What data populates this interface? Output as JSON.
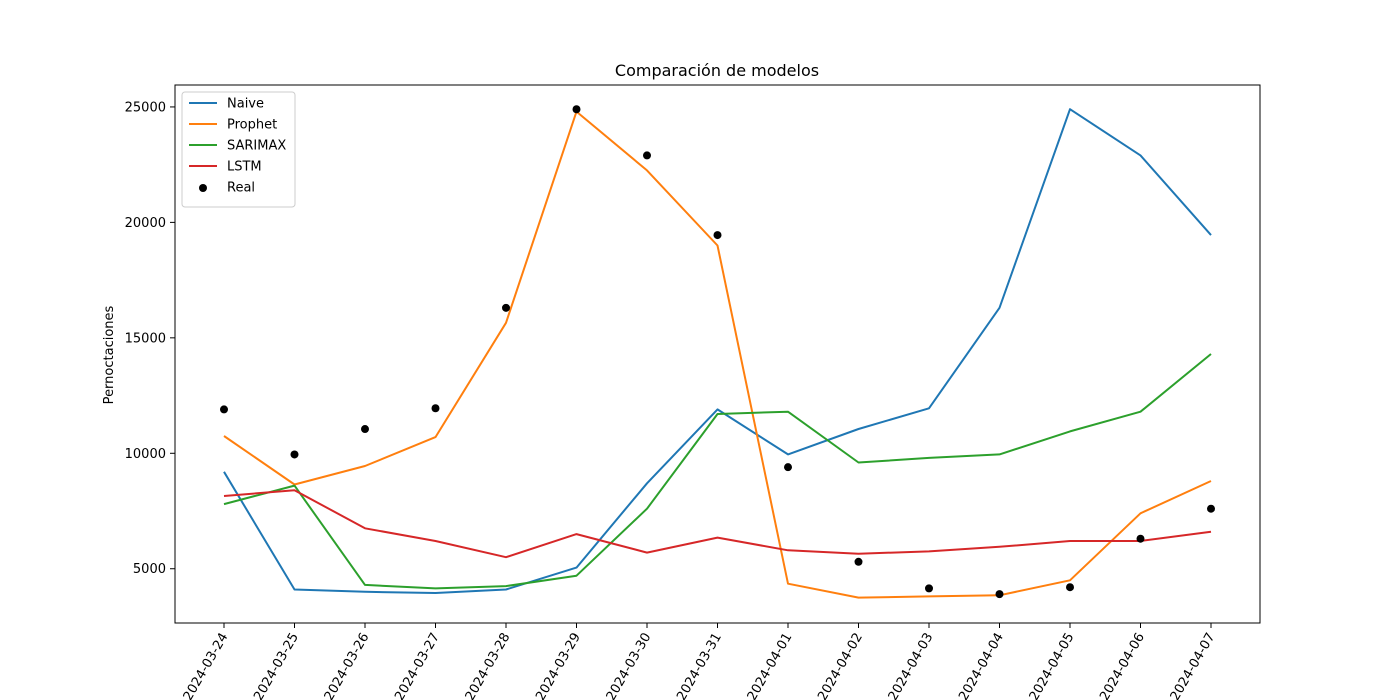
{
  "chart_data": {
    "type": "line",
    "title": "Comparación de modelos",
    "xlabel": "",
    "ylabel": "Pernoctaciones",
    "categories": [
      "2024-03-24",
      "2024-03-25",
      "2024-03-26",
      "2024-03-27",
      "2024-03-28",
      "2024-03-29",
      "2024-03-30",
      "2024-03-31",
      "2024-04-01",
      "2024-04-02",
      "2024-04-03",
      "2024-04-04",
      "2024-04-05",
      "2024-04-06",
      "2024-04-07"
    ],
    "yticks": [
      5000,
      10000,
      15000,
      20000,
      25000
    ],
    "ylim": [
      2650,
      25950
    ],
    "legend_position": "top-left",
    "series": [
      {
        "name": "Naive",
        "kind": "line",
        "color": "#1f77b4",
        "values": [
          9200,
          4100,
          4000,
          3950,
          4100,
          5050,
          8700,
          11900,
          9950,
          11050,
          11950,
          16300,
          24900,
          22900,
          19450
        ]
      },
      {
        "name": "Prophet",
        "kind": "line",
        "color": "#ff7f0e",
        "values": [
          10750,
          8650,
          9450,
          10700,
          15650,
          24800,
          22250,
          19000,
          4350,
          3750,
          3800,
          3850,
          4500,
          7400,
          8800
        ]
      },
      {
        "name": "SARIMAX",
        "kind": "line",
        "color": "#2ca02c",
        "values": [
          7800,
          8600,
          4300,
          4150,
          4250,
          4700,
          7600,
          11700,
          11800,
          9600,
          9800,
          9950,
          10950,
          11800,
          14300
        ]
      },
      {
        "name": "LSTM",
        "kind": "line",
        "color": "#d62728",
        "values": [
          8150,
          8400,
          6750,
          6200,
          5500,
          6500,
          5700,
          6350,
          5800,
          5650,
          5750,
          5950,
          6200,
          6200,
          6600
        ]
      },
      {
        "name": "Real",
        "kind": "scatter",
        "color": "#000000",
        "values": [
          11900,
          9950,
          11050,
          11950,
          16300,
          24900,
          22900,
          19450,
          9400,
          5300,
          4150,
          3900,
          4200,
          6300,
          7600
        ]
      }
    ]
  }
}
